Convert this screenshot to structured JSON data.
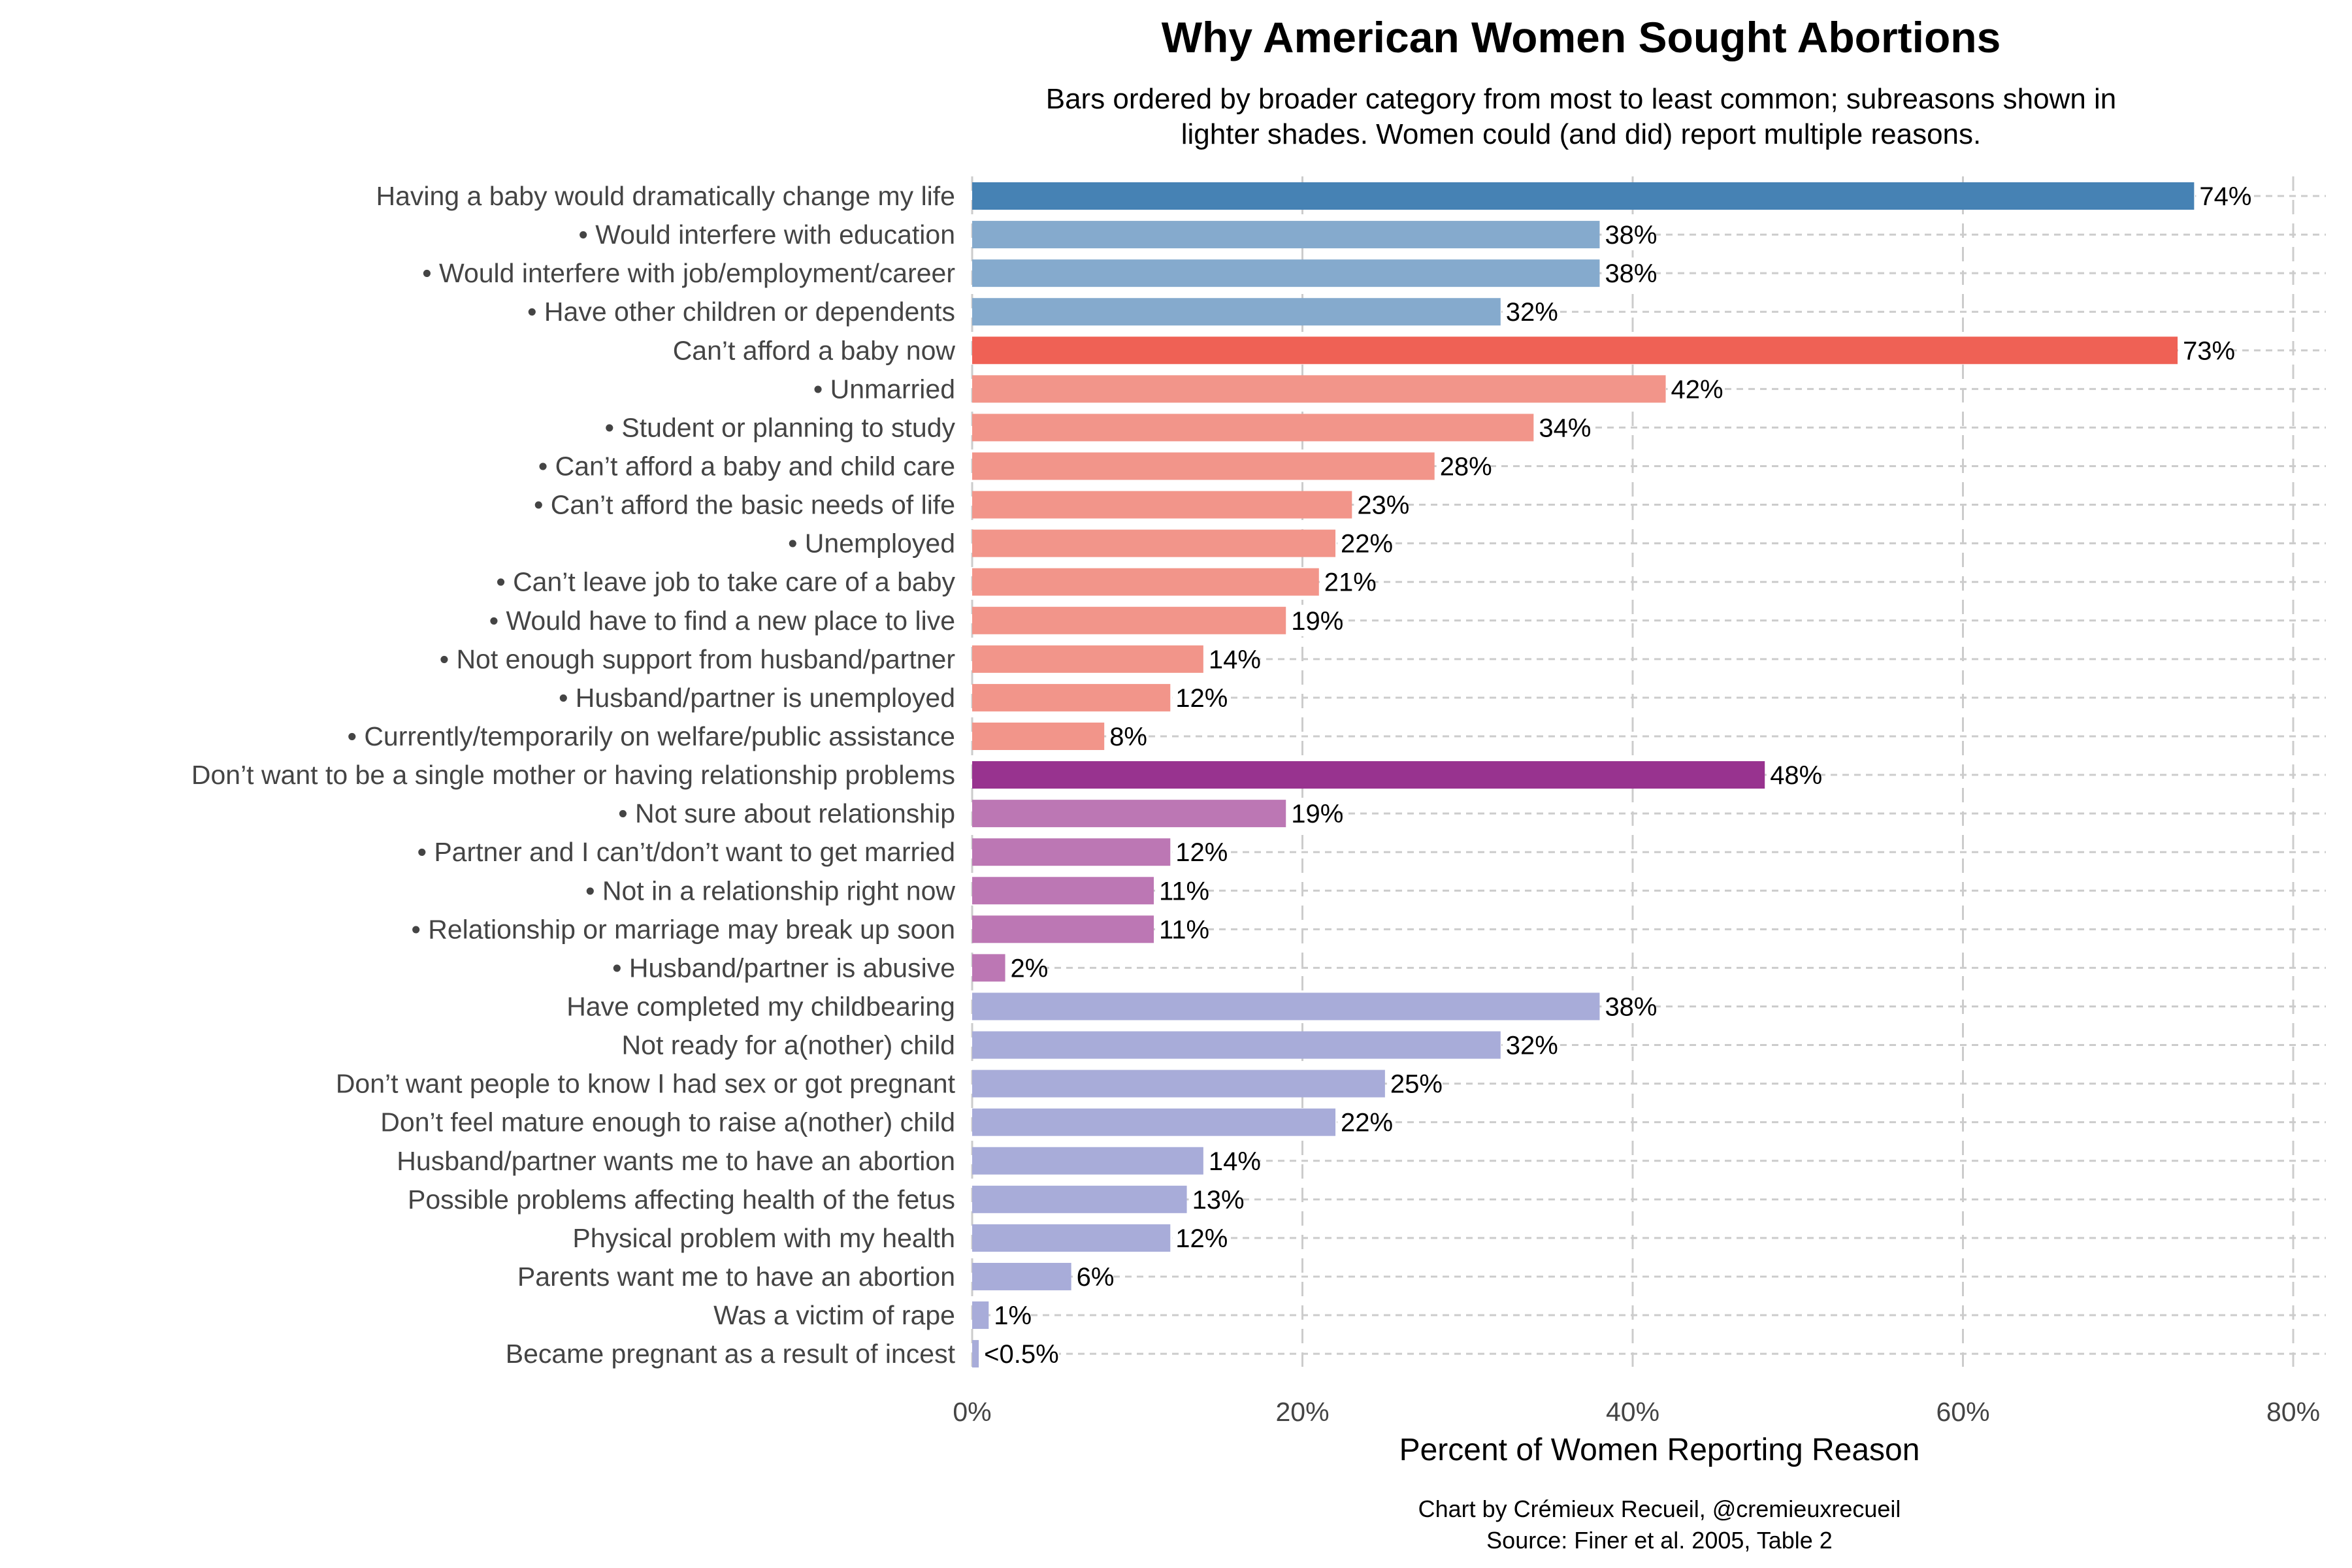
{
  "chart_data": {
    "type": "bar",
    "orientation": "horizontal",
    "title": "Why American Women Sought Abortions",
    "subtitle": [
      "Bars ordered by broader category from most to least common; subreasons shown in",
      "lighter shades. Women could (and did) report multiple reasons."
    ],
    "xlabel": "Percent of Women Reporting Reason",
    "ylabel": "",
    "xlim": [
      0,
      82
    ],
    "xticks": [
      0,
      20,
      40,
      60,
      80
    ],
    "xtick_labels": [
      "0%",
      "20%",
      "40%",
      "60%",
      "80%"
    ],
    "grid": true,
    "credit": [
      "Chart by Crémieux Recueil, @cremieuxrecueil",
      "Source: Finer et al. 2005, Table 2"
    ],
    "colors": {
      "life": "#4682b4",
      "life_sub": "#85aacd",
      "afford": "#ef6155",
      "afford_sub": "#f2958a",
      "relationship": "#98338f",
      "relationship_sub": "#bc77b4",
      "other": "#a8acd9"
    },
    "bars": [
      {
        "label": "Having a baby would dramatically change my life",
        "value": 74,
        "value_label": "74%",
        "group": "life"
      },
      {
        "label": "• Would interfere with education",
        "value": 38,
        "value_label": "38%",
        "group": "life_sub"
      },
      {
        "label": "• Would interfere with job/employment/career",
        "value": 38,
        "value_label": "38%",
        "group": "life_sub"
      },
      {
        "label": "• Have other children or dependents",
        "value": 32,
        "value_label": "32%",
        "group": "life_sub"
      },
      {
        "label": "Can’t afford a baby now",
        "value": 73,
        "value_label": "73%",
        "group": "afford"
      },
      {
        "label": "• Unmarried",
        "value": 42,
        "value_label": "42%",
        "group": "afford_sub"
      },
      {
        "label": "• Student or planning to study",
        "value": 34,
        "value_label": "34%",
        "group": "afford_sub"
      },
      {
        "label": "• Can’t afford a baby and child care",
        "value": 28,
        "value_label": "28%",
        "group": "afford_sub"
      },
      {
        "label": "• Can’t afford the basic needs of life",
        "value": 23,
        "value_label": "23%",
        "group": "afford_sub"
      },
      {
        "label": "• Unemployed",
        "value": 22,
        "value_label": "22%",
        "group": "afford_sub"
      },
      {
        "label": "• Can’t leave job to take care of a baby",
        "value": 21,
        "value_label": "21%",
        "group": "afford_sub"
      },
      {
        "label": "• Would have to find a new place to live",
        "value": 19,
        "value_label": "19%",
        "group": "afford_sub"
      },
      {
        "label": "• Not enough support from husband/partner",
        "value": 14,
        "value_label": "14%",
        "group": "afford_sub"
      },
      {
        "label": "• Husband/partner is unemployed",
        "value": 12,
        "value_label": "12%",
        "group": "afford_sub"
      },
      {
        "label": "• Currently/temporarily on welfare/public assistance",
        "value": 8,
        "value_label": "8%",
        "group": "afford_sub"
      },
      {
        "label": "Don’t want to be a single mother or having relationship problems",
        "value": 48,
        "value_label": "48%",
        "group": "relationship"
      },
      {
        "label": "• Not sure about relationship",
        "value": 19,
        "value_label": "19%",
        "group": "relationship_sub"
      },
      {
        "label": "• Partner and I can’t/don’t want to get married",
        "value": 12,
        "value_label": "12%",
        "group": "relationship_sub"
      },
      {
        "label": "• Not in a relationship right now",
        "value": 11,
        "value_label": "11%",
        "group": "relationship_sub"
      },
      {
        "label": "• Relationship or marriage may break up soon",
        "value": 11,
        "value_label": "11%",
        "group": "relationship_sub"
      },
      {
        "label": "• Husband/partner is abusive",
        "value": 2,
        "value_label": "2%",
        "group": "relationship_sub"
      },
      {
        "label": "Have completed my childbearing",
        "value": 38,
        "value_label": "38%",
        "group": "other"
      },
      {
        "label": "Not ready for a(nother) child",
        "value": 32,
        "value_label": "32%",
        "group": "other"
      },
      {
        "label": "Don’t want people to know I had sex or got pregnant",
        "value": 25,
        "value_label": "25%",
        "group": "other"
      },
      {
        "label": "Don’t feel mature enough to raise a(nother) child",
        "value": 22,
        "value_label": "22%",
        "group": "other"
      },
      {
        "label": "Husband/partner wants me to have an abortion",
        "value": 14,
        "value_label": "14%",
        "group": "other"
      },
      {
        "label": "Possible problems affecting health of the fetus",
        "value": 13,
        "value_label": "13%",
        "group": "other"
      },
      {
        "label": "Physical problem with my health",
        "value": 12,
        "value_label": "12%",
        "group": "other"
      },
      {
        "label": "Parents want me to have an abortion",
        "value": 6,
        "value_label": "6%",
        "group": "other"
      },
      {
        "label": "Was a victim of rape",
        "value": 1,
        "value_label": "1%",
        "group": "other"
      },
      {
        "label": "Became pregnant as a result of incest",
        "value": 0.4,
        "value_label": "<0.5%",
        "group": "other"
      }
    ]
  }
}
